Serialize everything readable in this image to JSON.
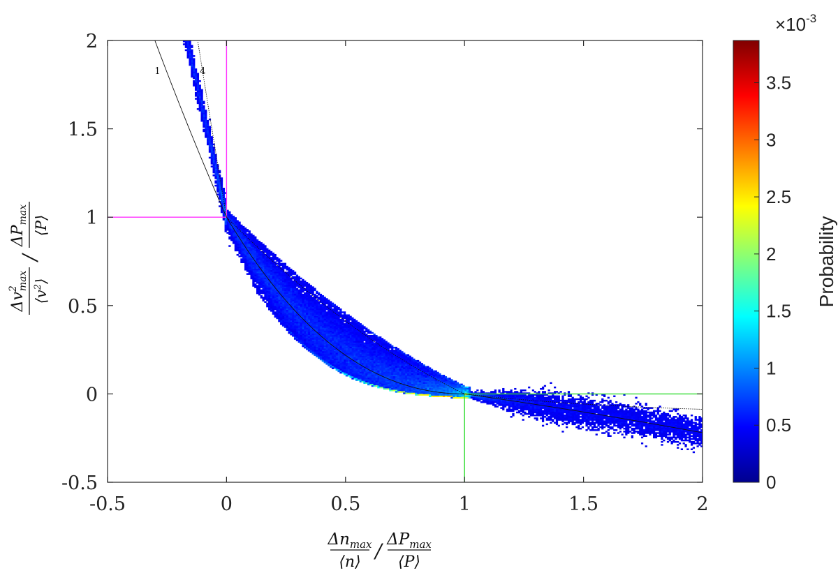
{
  "chart_data": {
    "type": "heatmap",
    "xlim": [
      -0.5,
      2
    ],
    "ylim": [
      -0.5,
      2
    ],
    "x_ticks": [
      -0.5,
      0,
      0.5,
      1,
      1.5,
      2
    ],
    "y_ticks": [
      -0.5,
      0,
      0.5,
      1,
      1.5,
      2
    ],
    "x_tick_labels": [
      "-0.5",
      "0",
      "0.5",
      "1",
      "1.5",
      "2"
    ],
    "y_tick_labels": [
      "-0.5",
      "0",
      "0.5",
      "1",
      "1.5",
      "2"
    ],
    "xlabel": {
      "numerator_left": "Δn",
      "sub_left": "max",
      "denominator_left": "⟨n⟩",
      "separator": "/",
      "numerator_right": "ΔP",
      "sub_right": "max",
      "denominator_right": "⟨P⟩"
    },
    "ylabel": {
      "numerator_left": "Δv",
      "sup_left": "2",
      "sub_left": "max",
      "denominator_left": "⟨v",
      "denominator_left_sup": "2",
      "denominator_left_close": "⟩",
      "separator": "/",
      "numerator_right": "ΔP",
      "sub_right": "max",
      "denominator_right": "⟨P⟩"
    },
    "grid": false,
    "reference_lines": [
      {
        "color": "#ff33ff",
        "points": [
          [
            -0.5,
            1
          ],
          [
            0,
            1
          ],
          [
            0,
            2
          ]
        ]
      },
      {
        "color": "#33dd33",
        "points": [
          [
            1,
            -0.5
          ],
          [
            1,
            0
          ],
          [
            2,
            0
          ]
        ]
      }
    ],
    "curves": [
      {
        "label": "1",
        "label_at": [
          -0.29,
          1.81
        ],
        "style": "solid"
      },
      {
        "label": "4",
        "label_at": [
          -0.1,
          1.81
        ],
        "style": "dotted"
      }
    ],
    "distribution": {
      "description_free": true,
      "pivot_points": [
        [
          0,
          1
        ],
        [
          1,
          0
        ]
      ],
      "peak_region": [
        0.6,
        0.85,
        0.02,
        0.2
      ],
      "max_probability": 0.00387
    },
    "colorbar": {
      "label": "Probability",
      "exponent_prefix": "×10",
      "exponent": "-3",
      "range": [
        0,
        3.87
      ],
      "ticks": [
        0,
        0.5,
        1,
        1.5,
        2,
        2.5,
        3,
        3.5
      ],
      "tick_labels": [
        "0",
        "0.5",
        "1",
        "1.5",
        "2",
        "2.5",
        "3",
        "3.5"
      ],
      "colormap": "jet"
    }
  }
}
